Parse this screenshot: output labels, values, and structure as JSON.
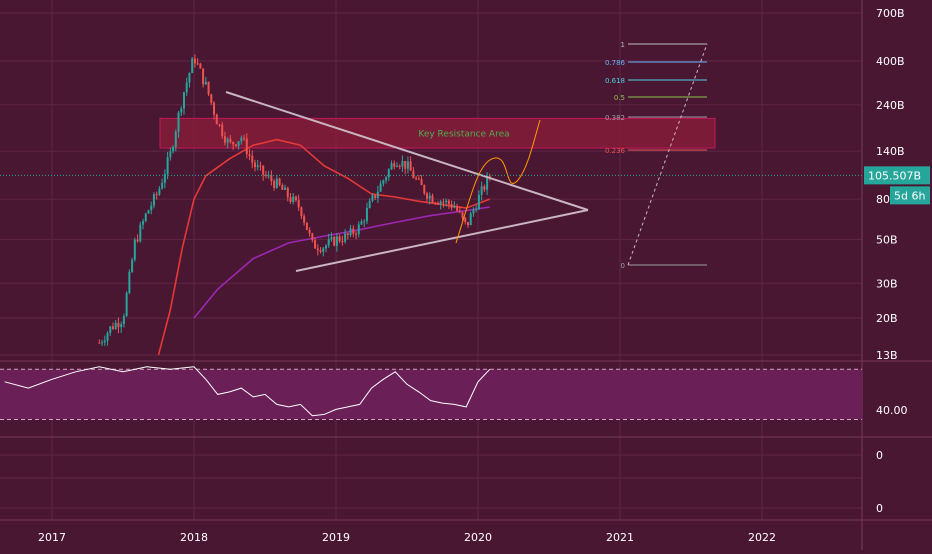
{
  "chart_data": {
    "type": "candlestick",
    "scale": "log",
    "grid": true,
    "colors": {
      "background": "#4a1733",
      "grid": "#5e2645",
      "up_candle": "#26a69a",
      "down_candle": "#ef5350",
      "ma_fast": "#e53935",
      "ma_slow": "#9c27b0",
      "triangle": "#c9b6c2",
      "rsi_line": "#ffffff",
      "rsi_band": "#6a1f57",
      "resistance_fill": "#8e1e3a",
      "resistance_text": "#4caf50",
      "price_badge": "#26a69a",
      "projection": "#ff9800"
    },
    "x_axis": {
      "ticks": [
        "2017",
        "2018",
        "2019",
        "2020",
        "2021",
        "2022"
      ]
    },
    "y_axis": {
      "ticks": [
        "700B",
        "400B",
        "240B",
        "140B",
        "80B",
        "50B",
        "30B",
        "20B",
        "13B"
      ],
      "tick_values": [
        700,
        400,
        240,
        140,
        80,
        50,
        30,
        20,
        13
      ]
    },
    "price_badge": "105.507B",
    "countdown_badge": "5d 6h",
    "annotation": "Key Resistance Area",
    "fibonacci_levels": [
      "1",
      "0.786",
      "0.618",
      "0.5",
      "0.382",
      "0.236",
      "0"
    ],
    "fib_level_colors": [
      "#bdbdbd",
      "#64b5f6",
      "#4dd0e1",
      "#8bc34a",
      "#9e9e9e",
      "#ef5350",
      "#9e9e9e"
    ],
    "close_series": [
      {
        "date": "2017-05",
        "value": 15
      },
      {
        "date": "2017-06",
        "value": 18
      },
      {
        "date": "2017-07",
        "value": 20
      },
      {
        "date": "2017-08",
        "value": 48
      },
      {
        "date": "2017-09",
        "value": 68
      },
      {
        "date": "2017-10",
        "value": 88
      },
      {
        "date": "2017-11",
        "value": 135
      },
      {
        "date": "2017-12",
        "value": 260
      },
      {
        "date": "2018-01",
        "value": 420
      },
      {
        "date": "2018-02",
        "value": 300
      },
      {
        "date": "2018-03",
        "value": 195
      },
      {
        "date": "2018-04",
        "value": 150
      },
      {
        "date": "2018-05",
        "value": 165
      },
      {
        "date": "2018-06",
        "value": 120
      },
      {
        "date": "2018-07",
        "value": 105
      },
      {
        "date": "2018-08",
        "value": 95
      },
      {
        "date": "2018-09",
        "value": 82
      },
      {
        "date": "2018-10",
        "value": 72
      },
      {
        "date": "2018-11",
        "value": 47
      },
      {
        "date": "2018-12",
        "value": 46
      },
      {
        "date": "2019-01",
        "value": 50
      },
      {
        "date": "2019-02",
        "value": 52
      },
      {
        "date": "2019-03",
        "value": 58
      },
      {
        "date": "2019-04",
        "value": 78
      },
      {
        "date": "2019-05",
        "value": 100
      },
      {
        "date": "2019-06",
        "value": 128
      },
      {
        "date": "2019-07",
        "value": 118
      },
      {
        "date": "2019-08",
        "value": 95
      },
      {
        "date": "2019-09",
        "value": 82
      },
      {
        "date": "2019-10",
        "value": 78
      },
      {
        "date": "2019-11",
        "value": 74
      },
      {
        "date": "2019-12",
        "value": 58
      },
      {
        "date": "2020-01",
        "value": 80
      },
      {
        "date": "2020-02",
        "value": 105.507
      }
    ],
    "ma_fast": [
      {
        "date": "2017-10",
        "value": 13
      },
      {
        "date": "2017-11",
        "value": 22
      },
      {
        "date": "2017-12",
        "value": 45
      },
      {
        "date": "2018-01",
        "value": 80
      },
      {
        "date": "2018-02",
        "value": 105
      },
      {
        "date": "2018-04",
        "value": 128
      },
      {
        "date": "2018-06",
        "value": 150
      },
      {
        "date": "2018-08",
        "value": 160
      },
      {
        "date": "2018-10",
        "value": 150
      },
      {
        "date": "2018-12",
        "value": 118
      },
      {
        "date": "2019-02",
        "value": 102
      },
      {
        "date": "2019-04",
        "value": 85
      },
      {
        "date": "2019-06",
        "value": 82
      },
      {
        "date": "2019-08",
        "value": 78
      },
      {
        "date": "2019-10",
        "value": 75
      },
      {
        "date": "2019-12",
        "value": 72
      },
      {
        "date": "2020-02",
        "value": 80
      }
    ],
    "ma_slow": [
      {
        "date": "2018-01",
        "value": 20
      },
      {
        "date": "2018-03",
        "value": 28
      },
      {
        "date": "2018-06",
        "value": 40
      },
      {
        "date": "2018-09",
        "value": 48
      },
      {
        "date": "2018-12",
        "value": 52
      },
      {
        "date": "2019-03",
        "value": 56
      },
      {
        "date": "2019-06",
        "value": 61
      },
      {
        "date": "2019-09",
        "value": 66
      },
      {
        "date": "2019-12",
        "value": 70
      },
      {
        "date": "2020-02",
        "value": 73
      }
    ],
    "rsi": {
      "label": "40.00",
      "axis_ticks": [
        "40.00",
        "0",
        "0"
      ],
      "band": [
        30,
        70
      ],
      "values": [
        {
          "date": "2016-09",
          "value": 60
        },
        {
          "date": "2016-11",
          "value": 55
        },
        {
          "date": "2017-01",
          "value": 62
        },
        {
          "date": "2017-03",
          "value": 68
        },
        {
          "date": "2017-05",
          "value": 72
        },
        {
          "date": "2017-07",
          "value": 68
        },
        {
          "date": "2017-09",
          "value": 72
        },
        {
          "date": "2017-11",
          "value": 70
        },
        {
          "date": "2018-01",
          "value": 72
        },
        {
          "date": "2018-02",
          "value": 62
        },
        {
          "date": "2018-03",
          "value": 50
        },
        {
          "date": "2018-04",
          "value": 52
        },
        {
          "date": "2018-05",
          "value": 55
        },
        {
          "date": "2018-06",
          "value": 48
        },
        {
          "date": "2018-07",
          "value": 50
        },
        {
          "date": "2018-08",
          "value": 42
        },
        {
          "date": "2018-09",
          "value": 40
        },
        {
          "date": "2018-10",
          "value": 42
        },
        {
          "date": "2018-11",
          "value": 33
        },
        {
          "date": "2018-12",
          "value": 34
        },
        {
          "date": "2019-01",
          "value": 38
        },
        {
          "date": "2019-02",
          "value": 40
        },
        {
          "date": "2019-03",
          "value": 42
        },
        {
          "date": "2019-04",
          "value": 55
        },
        {
          "date": "2019-05",
          "value": 62
        },
        {
          "date": "2019-06",
          "value": 68
        },
        {
          "date": "2019-07",
          "value": 58
        },
        {
          "date": "2019-08",
          "value": 52
        },
        {
          "date": "2019-09",
          "value": 45
        },
        {
          "date": "2019-10",
          "value": 43
        },
        {
          "date": "2019-11",
          "value": 42
        },
        {
          "date": "2019-12",
          "value": 40
        },
        {
          "date": "2020-01",
          "value": 60
        },
        {
          "date": "2020-02",
          "value": 70
        }
      ]
    }
  }
}
